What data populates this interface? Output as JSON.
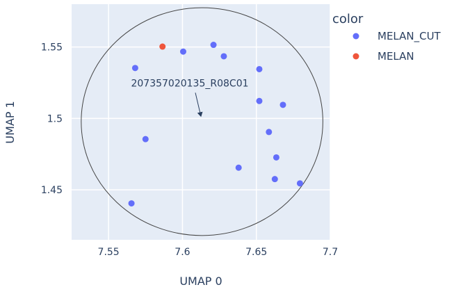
{
  "chart_data": {
    "type": "scatter",
    "xlabel": "UMAP 0",
    "ylabel": "UMAP 1",
    "xlim": [
      7.525,
      7.7
    ],
    "ylim": [
      1.415,
      1.58
    ],
    "x_ticks": [
      7.55,
      7.6,
      7.65,
      7.7
    ],
    "x_tick_labels": [
      "7.55",
      "7.6",
      "7.65",
      "7.7"
    ],
    "y_ticks": [
      1.45,
      1.5,
      1.55
    ],
    "y_tick_labels": [
      "1.45",
      "1.5",
      "1.55"
    ],
    "grid": true,
    "legend_title": "color",
    "legend_position": "right",
    "series": [
      {
        "name": "MELAN_CUT",
        "color": "#636efa",
        "points": [
          {
            "x": 7.568,
            "y": 1.5353
          },
          {
            "x": 7.6005,
            "y": 1.5468
          },
          {
            "x": 7.621,
            "y": 1.5515
          },
          {
            "x": 7.628,
            "y": 1.5435
          },
          {
            "x": 7.652,
            "y": 1.5345
          },
          {
            "x": 7.652,
            "y": 1.5122
          },
          {
            "x": 7.668,
            "y": 1.5095
          },
          {
            "x": 7.6585,
            "y": 1.4905
          },
          {
            "x": 7.575,
            "y": 1.4855
          },
          {
            "x": 7.6635,
            "y": 1.4727
          },
          {
            "x": 7.638,
            "y": 1.4655
          },
          {
            "x": 7.6625,
            "y": 1.4575
          },
          {
            "x": 7.6795,
            "y": 1.4545
          },
          {
            "x": 7.5655,
            "y": 1.4405
          }
        ]
      },
      {
        "name": "MELAN",
        "color": "#ef553b",
        "points": [
          {
            "x": 7.5865,
            "y": 1.5503
          }
        ]
      }
    ],
    "shapes": [
      {
        "type": "circle",
        "x0": 7.5315,
        "x1": 7.695,
        "y0": 1.418,
        "y1": 1.5775,
        "stroke": "#444444"
      }
    ],
    "annotations": [
      {
        "text": "207357020135_R08C01",
        "x": 7.6125,
        "y": 1.5005
      }
    ]
  }
}
